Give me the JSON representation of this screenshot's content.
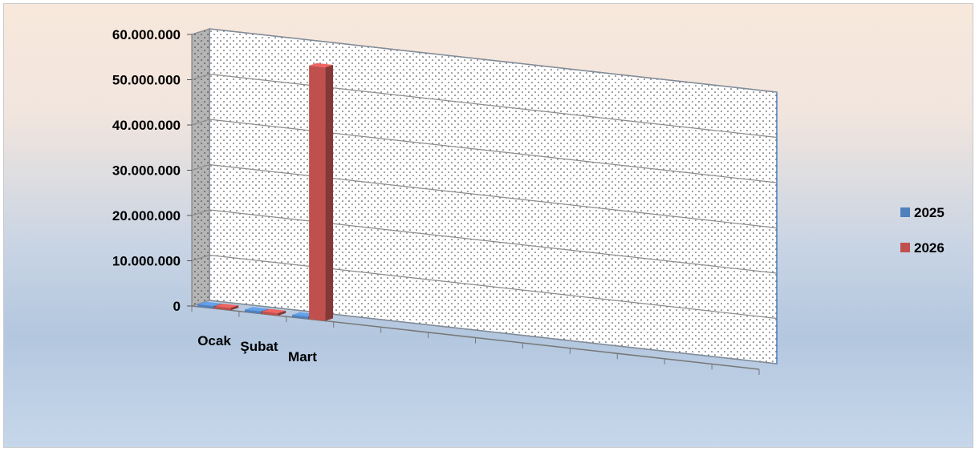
{
  "chart_data": {
    "type": "bar",
    "categories": [
      "Ocak",
      "Şubat",
      "Mart",
      "",
      "",
      "",
      "",
      "",
      "",
      "",
      "",
      ""
    ],
    "series": [
      {
        "name": "2025",
        "color": "#4f81bd",
        "values": [
          0,
          0,
          0,
          0,
          0,
          0,
          0,
          0,
          0,
          0,
          0,
          0
        ]
      },
      {
        "name": "2026",
        "color": "#c0504d",
        "values": [
          300000,
          300000,
          56000000,
          0,
          0,
          0,
          0,
          0,
          0,
          0,
          0,
          0
        ]
      }
    ],
    "y_ticks": [
      "0",
      "10.000.000",
      "20.000.000",
      "30.000.000",
      "40.000.000",
      "50.000.000",
      "60.000.000"
    ],
    "ylim": [
      0,
      60000000
    ],
    "grid": true,
    "legend_position": "right",
    "title": "",
    "xlabel": "",
    "ylabel": ""
  }
}
